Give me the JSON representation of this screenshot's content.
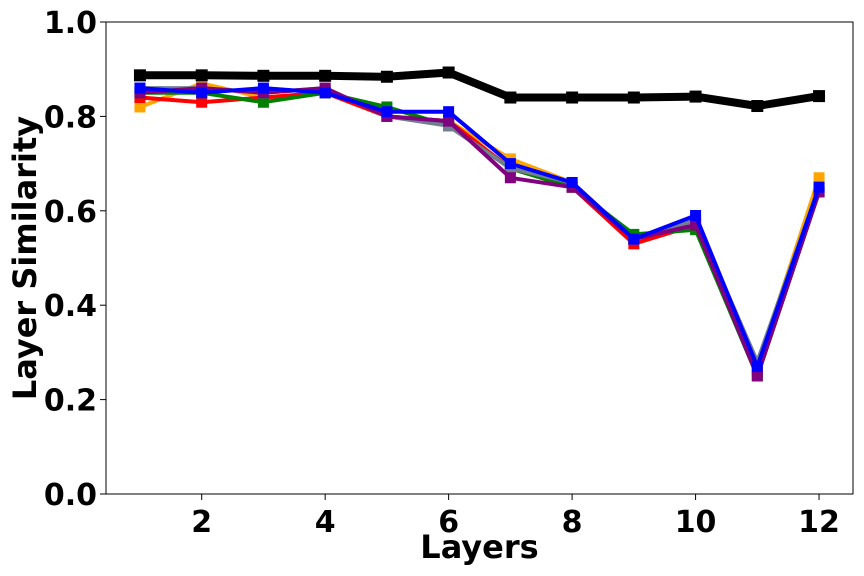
{
  "chart_data": {
    "type": "line",
    "title": "",
    "xlabel": "Layers",
    "ylabel": "Layer Similarity",
    "xlim": [
      0.45,
      12.55
    ],
    "ylim": [
      0.0,
      1.0
    ],
    "grid": false,
    "legend": "none",
    "x_ticks": [
      2,
      4,
      6,
      8,
      10,
      12
    ],
    "x_tick_labels": [
      "2",
      "4",
      "6",
      "8",
      "10",
      "12"
    ],
    "y_ticks": [
      0.0,
      0.2,
      0.4,
      0.6,
      0.8,
      1.0
    ],
    "y_tick_labels": [
      "0.0",
      "0.2",
      "0.4",
      "0.6",
      "0.8",
      "1.0"
    ],
    "x": [
      1,
      2,
      3,
      4,
      5,
      6,
      7,
      8,
      9,
      10,
      11,
      12
    ],
    "series": [
      {
        "color": "#ffa500",
        "line_width": "normal",
        "values": [
          0.82,
          0.87,
          0.84,
          0.85,
          0.8,
          0.79,
          0.71,
          0.66,
          0.54,
          0.57,
          0.27,
          0.67
        ]
      },
      {
        "color": "#ff0000",
        "line_width": "normal",
        "values": [
          0.84,
          0.83,
          0.84,
          0.85,
          0.8,
          0.79,
          0.69,
          0.65,
          0.53,
          0.57,
          0.26,
          0.64
        ]
      },
      {
        "color": "#008000",
        "line_width": "normal",
        "values": [
          0.85,
          0.85,
          0.83,
          0.85,
          0.82,
          0.78,
          0.69,
          0.65,
          0.55,
          0.56,
          0.25,
          0.64
        ]
      },
      {
        "color": "#708090",
        "line_width": "normal",
        "values": [
          0.86,
          0.86,
          0.85,
          0.86,
          0.8,
          0.78,
          0.69,
          0.66,
          0.54,
          0.58,
          0.28,
          0.65
        ]
      },
      {
        "color": "#800080",
        "line_width": "normal",
        "values": [
          0.85,
          0.86,
          0.85,
          0.86,
          0.8,
          0.79,
          0.67,
          0.65,
          0.54,
          0.57,
          0.25,
          0.64
        ]
      },
      {
        "color": "#0000ff",
        "line_width": "normal",
        "values": [
          0.86,
          0.85,
          0.86,
          0.85,
          0.81,
          0.81,
          0.7,
          0.66,
          0.54,
          0.59,
          0.27,
          0.65
        ]
      },
      {
        "color": "#000000",
        "line_width": "thick",
        "values": [
          0.887,
          0.887,
          0.886,
          0.886,
          0.884,
          0.893,
          0.84,
          0.84,
          0.84,
          0.842,
          0.822,
          0.843
        ]
      }
    ]
  }
}
